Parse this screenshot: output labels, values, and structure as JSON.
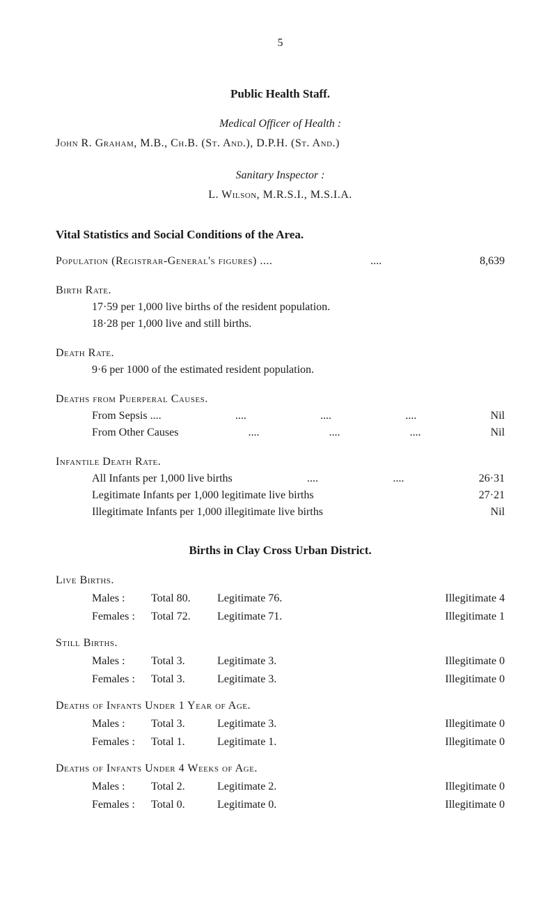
{
  "page_number": "5",
  "headings": {
    "public_health_staff": "Public Health Staff.",
    "medical_officer_label": "Medical Officer of Health :",
    "sanitary_inspector_label": "Sanitary Inspector :",
    "vital_statistics": "Vital Statistics and Social Conditions of the Area.",
    "births_clay": "Births in Clay Cross Urban District."
  },
  "officers": {
    "medical_officer": "John R. Graham, M.B., Ch.B. (St. And.), D.P.H. (St. And.)",
    "sanitary_inspector": "L. Wilson, M.R.S.I., M.S.I.A."
  },
  "population": {
    "label": "Population (Registrar-General's figures) ....",
    "dots": "....",
    "value": "8,639"
  },
  "birth_rate": {
    "title": "Birth Rate.",
    "line1": "17·59 per 1,000 live births of the resident population.",
    "line2": "18·28 per 1,000 live and still births."
  },
  "death_rate": {
    "title": "Death Rate.",
    "line1": "9·6 per 1000 of the estimated resident population."
  },
  "puerperal": {
    "title": "Deaths from Puerperal Causes.",
    "sepsis_label": "From Sepsis ....",
    "sepsis_value": "Nil",
    "other_label": "From Other Causes",
    "other_value": "Nil",
    "dots": "...."
  },
  "infantile": {
    "title": "Infantile Death Rate.",
    "all_label": "All Infants per 1,000 live births",
    "all_value": "26·31",
    "legit_label": "Legitimate Infants per 1,000 legitimate live births",
    "legit_value": "27·21",
    "illegit_label": "Illegitimate Infants per 1,000 illegitimate live births",
    "illegit_value": "Nil",
    "dots": "....",
    "dots2": "...."
  },
  "births": {
    "live": {
      "title": "Live Births.",
      "males": {
        "gender": "Males :",
        "total": "Total 80.",
        "legit": "Legitimate 76.",
        "illegit": "Illegitimate 4"
      },
      "females": {
        "gender": "Females :",
        "total": "Total 72.",
        "legit": "Legitimate 71.",
        "illegit": "Illegitimate 1"
      }
    },
    "still": {
      "title": "Still Births.",
      "males": {
        "gender": "Males :",
        "total": "Total 3.",
        "legit": "Legitimate 3.",
        "illegit": "Illegitimate 0"
      },
      "females": {
        "gender": "Females :",
        "total": "Total 3.",
        "legit": "Legitimate 3.",
        "illegit": "Illegitimate 0"
      }
    },
    "under1year": {
      "title": "Deaths of Infants Under 1 Year of Age.",
      "males": {
        "gender": "Males :",
        "total": "Total 3.",
        "legit": "Legitimate 3.",
        "illegit": "Illegitimate 0"
      },
      "females": {
        "gender": "Females :",
        "total": "Total 1.",
        "legit": "Legitimate 1.",
        "illegit": "Illegitimate 0"
      }
    },
    "under4weeks": {
      "title": "Deaths of Infants Under 4 Weeks of Age.",
      "males": {
        "gender": "Males :",
        "total": "Total 2.",
        "legit": "Legitimate 2.",
        "illegit": "Illegitimate 0"
      },
      "females": {
        "gender": "Females :",
        "total": "Total 0.",
        "legit": "Legitimate 0.",
        "illegit": "Illegitimate 0"
      }
    }
  }
}
